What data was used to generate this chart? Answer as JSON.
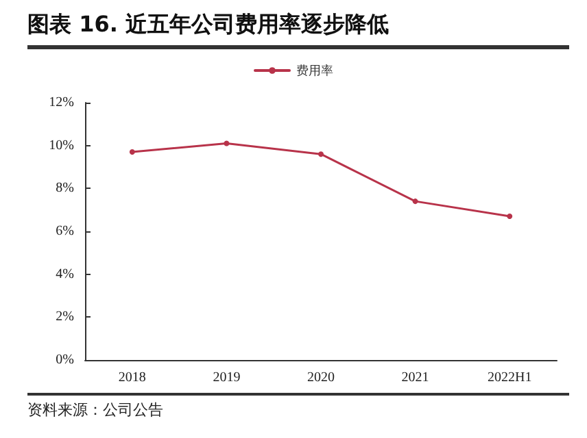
{
  "chart_data": {
    "type": "line",
    "title": "图表 16. 近五年公司费用率逐步降低",
    "categories": [
      "2018",
      "2019",
      "2020",
      "2021",
      "2022H1"
    ],
    "series": [
      {
        "name": "费用率",
        "color": "#b8334a",
        "values": [
          9.7,
          10.1,
          9.6,
          7.4,
          6.7
        ]
      }
    ],
    "ylim": [
      0,
      12
    ],
    "yticks": [
      {
        "value": 0,
        "label": "0%"
      },
      {
        "value": 2,
        "label": "2%"
      },
      {
        "value": 4,
        "label": "4%"
      },
      {
        "value": 6,
        "label": "6%"
      },
      {
        "value": 8,
        "label": "8%"
      },
      {
        "value": 10,
        "label": "10%"
      },
      {
        "value": 12,
        "label": "12%"
      }
    ],
    "annotations": [
      "资料来源：公司公告"
    ],
    "legend": "top",
    "grid": false,
    "marker": "circle",
    "line_style": "solid"
  }
}
